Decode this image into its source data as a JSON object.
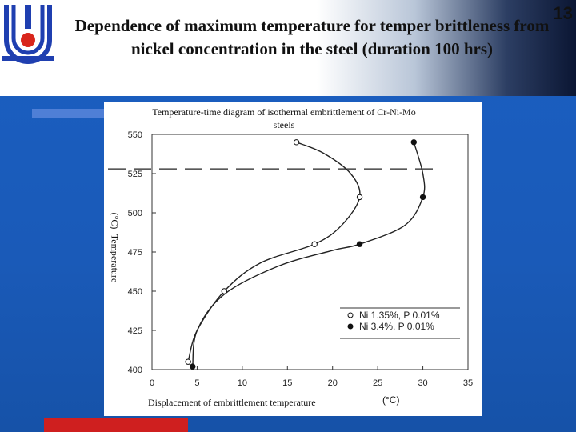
{
  "slide": {
    "number": "13",
    "title": "Dependence of maximum temperature for temper brittleness from nickel concentration in the steel (duration 100 hrs)",
    "colors": {
      "background": "#1b5fc2",
      "accent_bar": "#4f7fd6",
      "bottom_bar": "#cf1f1f"
    }
  },
  "chart_data": {
    "type": "scatter",
    "title": "Temperature-time diagram of isothermal embrittlement of Cr-Ni-Mo steels",
    "xlabel": "Displacement of embrittlement temperature",
    "xlabel_unit": "(°C)",
    "ylabel": "Temperature",
    "ylabel_unit": "(°C)",
    "xlim": [
      0,
      35
    ],
    "ylim": [
      400,
      550
    ],
    "xticks": [
      "0",
      "5",
      "10",
      "15",
      "20",
      "25",
      "30",
      "35"
    ],
    "yticks": [
      "400",
      "425",
      "450",
      "475",
      "500",
      "525",
      "550"
    ],
    "reference_line_y": 528,
    "series": [
      {
        "name": "Ni 1.35%, P 0.01%",
        "marker": "open-circle",
        "points": [
          [
            4,
            405
          ],
          [
            8,
            450
          ],
          [
            18,
            480
          ],
          [
            23,
            510
          ],
          [
            16,
            545
          ]
        ]
      },
      {
        "name": "Ni 3.4%,  P 0.01%",
        "marker": "filled-circle",
        "points": [
          [
            4.5,
            402
          ],
          [
            23,
            480
          ],
          [
            30,
            510
          ],
          [
            29,
            545
          ]
        ]
      }
    ],
    "legend_position": "bottom-right"
  }
}
